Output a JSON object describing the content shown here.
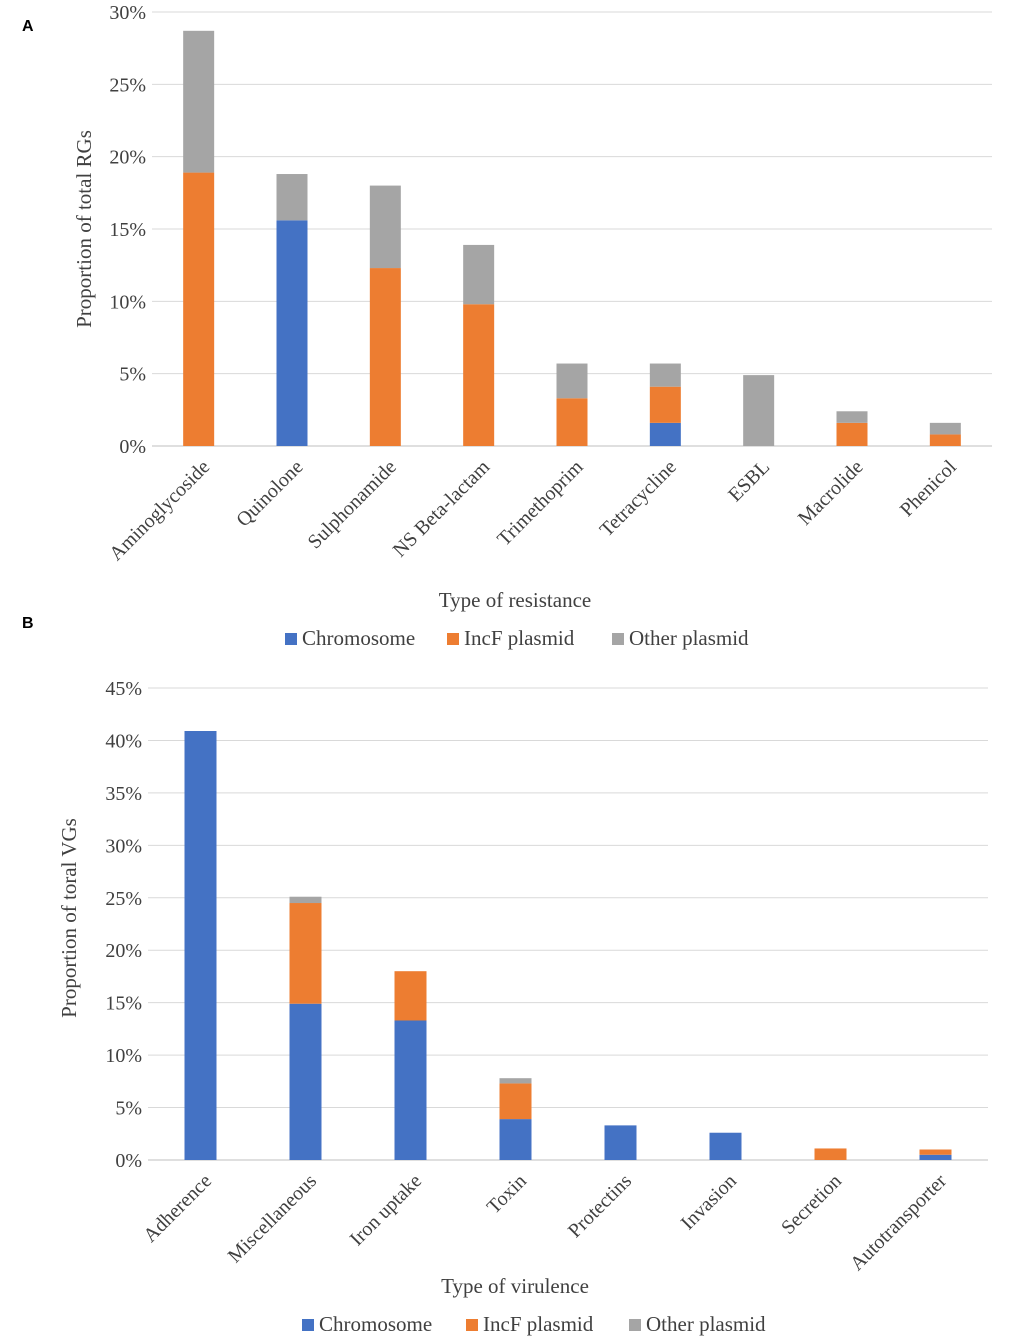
{
  "colors": {
    "chromosome": "#4472c4",
    "incf": "#ed7d31",
    "other": "#a5a5a5"
  },
  "chart_data": [
    {
      "panel": "A",
      "type": "bar",
      "stacked": true,
      "title": "",
      "xlabel": "Type of resistance",
      "ylabel": "Proportion of total RGs",
      "ylim": [
        0,
        30
      ],
      "yticks": [
        "0%",
        "5%",
        "10%",
        "15%",
        "20%",
        "25%",
        "30%"
      ],
      "grid": true,
      "legend": "bottom",
      "categories": [
        "Aminoglycoside",
        "Quinolone",
        "Sulphonamide",
        "NS Beta-lactam",
        "Trimethoprim",
        "Tetracycline",
        "ESBL",
        "Macrolide",
        "Phenicol"
      ],
      "series": [
        {
          "name": "Chromosome",
          "color": "#4472c4",
          "values": [
            0,
            15.6,
            0,
            0,
            0,
            1.6,
            0,
            0,
            0
          ]
        },
        {
          "name": "IncF plasmid",
          "color": "#ed7d31",
          "values": [
            18.9,
            0,
            12.3,
            9.8,
            3.3,
            2.5,
            0,
            1.6,
            0.8
          ]
        },
        {
          "name": "Other plasmid",
          "color": "#a5a5a5",
          "values": [
            9.8,
            3.2,
            5.7,
            4.1,
            2.4,
            1.6,
            4.9,
            0.8,
            0.8
          ]
        }
      ]
    },
    {
      "panel": "B",
      "type": "bar",
      "stacked": true,
      "title": "",
      "xlabel": "Type of virulence",
      "ylabel": "Proportion of toral VGs",
      "ylim": [
        0,
        45
      ],
      "yticks": [
        "0%",
        "5%",
        "10%",
        "15%",
        "20%",
        "25%",
        "30%",
        "35%",
        "40%",
        "45%"
      ],
      "grid": true,
      "legend": "bottom",
      "categories": [
        "Adherence",
        "Miscellaneous",
        "Iron uptake",
        "Toxin",
        "Protectins",
        "Invasion",
        "Secretion",
        "Autotransporter"
      ],
      "series": [
        {
          "name": "Chromosome",
          "color": "#4472c4",
          "values": [
            40.9,
            14.9,
            13.3,
            3.9,
            3.3,
            2.6,
            0,
            0.5
          ]
        },
        {
          "name": "IncF plasmid",
          "color": "#ed7d31",
          "values": [
            0,
            9.6,
            4.7,
            3.4,
            0,
            0,
            1.1,
            0.5
          ]
        },
        {
          "name": "Other plasmid",
          "color": "#a5a5a5",
          "values": [
            0,
            0.6,
            0,
            0.5,
            0,
            0,
            0,
            0
          ]
        }
      ]
    }
  ]
}
